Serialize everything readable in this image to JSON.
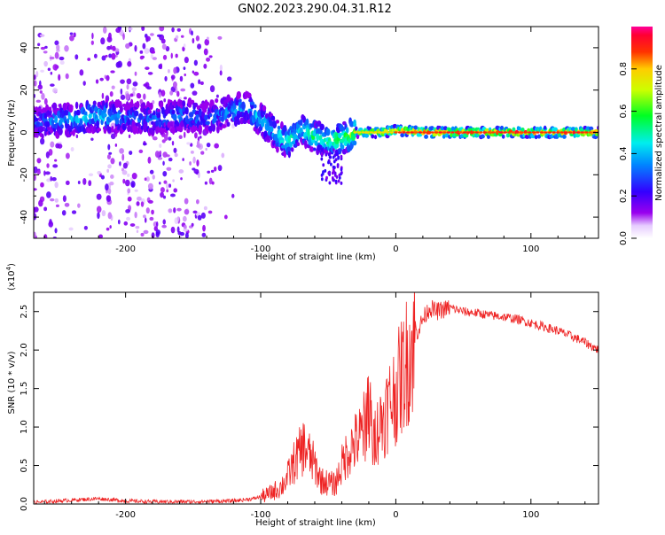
{
  "title": "GN02.2023.290.04.31.R12",
  "chart_data": [
    {
      "type": "heatmap",
      "xlabel": "Height of straight line (km)",
      "ylabel": "Frequency (Hz)",
      "xlim": [
        -268,
        150
      ],
      "ylim": [
        -50,
        50
      ],
      "x_ticks": [
        -200,
        -100,
        0,
        100
      ],
      "x_tick_labels": [
        "-200",
        "-100",
        "0",
        "100"
      ],
      "y_ticks": [
        -40,
        -20,
        0,
        20,
        40
      ],
      "y_tick_labels": [
        "-40",
        "-20",
        "0",
        "20",
        "40"
      ],
      "colorbar": {
        "label": "Normalized spectral amplitude",
        "range": [
          0,
          1
        ],
        "ticks": [
          0.0,
          0.2,
          0.4,
          0.6,
          0.8
        ],
        "tick_labels": [
          "0.0",
          "0.2",
          "0.4",
          "0.6",
          "0.8"
        ]
      },
      "ridge": [
        {
          "x": -265,
          "f": 5,
          "amp": 0.3
        },
        {
          "x": -240,
          "f": 6,
          "amp": 0.4
        },
        {
          "x": -220,
          "f": 8,
          "amp": 0.45
        },
        {
          "x": -200,
          "f": 7,
          "amp": 0.3
        },
        {
          "x": -180,
          "f": 6,
          "amp": 0.3
        },
        {
          "x": -160,
          "f": 8,
          "amp": 0.35
        },
        {
          "x": -140,
          "f": 7,
          "amp": 0.3
        },
        {
          "x": -120,
          "f": 10,
          "amp": 0.35
        },
        {
          "x": -110,
          "f": 12,
          "amp": 0.4
        },
        {
          "x": -100,
          "f": 6,
          "amp": 0.45
        },
        {
          "x": -90,
          "f": 0,
          "amp": 0.45
        },
        {
          "x": -80,
          "f": -5,
          "amp": 0.5
        },
        {
          "x": -70,
          "f": 2,
          "amp": 0.5
        },
        {
          "x": -60,
          "f": -2,
          "amp": 0.55
        },
        {
          "x": -50,
          "f": -4,
          "amp": 0.55
        },
        {
          "x": -40,
          "f": -3,
          "amp": 0.6
        },
        {
          "x": -30,
          "f": 0,
          "amp": 0.7
        },
        {
          "x": -10,
          "f": 0,
          "amp": 0.8
        },
        {
          "x": 0,
          "f": 1,
          "amp": 0.85
        },
        {
          "x": 25,
          "f": 0,
          "amp": 0.9
        },
        {
          "x": 50,
          "f": 0,
          "amp": 0.9
        },
        {
          "x": 100,
          "f": 0,
          "amp": 0.9
        },
        {
          "x": 150,
          "f": 0,
          "amp": 0.85
        }
      ]
    },
    {
      "type": "line",
      "xlabel": "Height of straight line (km)",
      "ylabel": "SNR (10 * v/v)",
      "y_multiplier": "(x10",
      "y_multiplier_exp": "4",
      "y_multiplier_close": ")",
      "xlim": [
        -268,
        150
      ],
      "ylim": [
        0,
        2.75
      ],
      "x_ticks": [
        -200,
        -100,
        0,
        100
      ],
      "x_tick_labels": [
        "-200",
        "-100",
        "0",
        "100"
      ],
      "y_ticks": [
        0.0,
        0.5,
        1.0,
        1.5,
        2.0,
        2.5
      ],
      "y_tick_labels": [
        "0.0",
        "0.5",
        "1.0",
        "1.5",
        "2.0",
        "2.5"
      ],
      "series": [
        {
          "color": "#ee2222",
          "x": [
            -268,
            -240,
            -220,
            -200,
            -180,
            -150,
            -120,
            -105,
            -95,
            -85,
            -80,
            -75,
            -68,
            -60,
            -55,
            -45,
            -40,
            -35,
            -30,
            -25,
            -22,
            -20,
            -17,
            -15,
            -10,
            -5,
            0,
            5,
            10,
            15,
            20,
            25,
            30,
            40,
            50,
            60,
            70,
            80,
            90,
            100,
            110,
            120,
            130,
            140,
            150
          ],
          "y": [
            0.02,
            0.05,
            0.07,
            0.04,
            0.03,
            0.03,
            0.04,
            0.07,
            0.12,
            0.22,
            0.35,
            0.55,
            0.75,
            0.5,
            0.3,
            0.25,
            0.5,
            0.7,
            0.8,
            0.9,
            1.1,
            1.3,
            0.8,
            0.9,
            1.1,
            1.3,
            1.45,
            1.7,
            1.95,
            2.2,
            2.4,
            2.55,
            2.5,
            2.55,
            2.5,
            2.48,
            2.45,
            2.43,
            2.4,
            2.35,
            2.3,
            2.25,
            2.18,
            2.1,
            2.0
          ]
        }
      ]
    }
  ],
  "colors": {
    "series": "#ee2222",
    "ridge_core": "#ff2222"
  }
}
